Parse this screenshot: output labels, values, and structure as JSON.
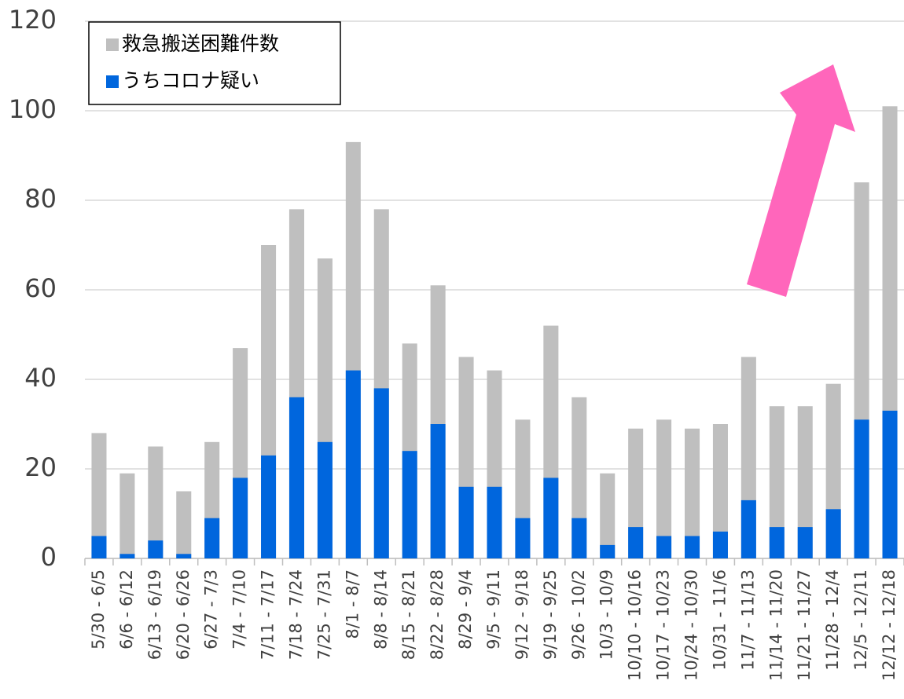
{
  "chart_data": {
    "type": "bar",
    "categories": [
      "5/30 - 6/5",
      "6/6 - 6/12",
      "6/13 - 6/19",
      "6/20 - 6/26",
      "6/27 - 7/3",
      "7/4 - 7/10",
      "7/11 - 7/17",
      "7/18 - 7/24",
      "7/25 - 7/31",
      "8/1 - 8/7",
      "8/8 - 8/14",
      "8/15 - 8/21",
      "8/22 - 8/28",
      "8/29 - 9/4",
      "9/5 - 9/11",
      "9/12 - 9/18",
      "9/19 - 9/25",
      "9/26 - 10/2",
      "10/3 - 10/9",
      "10/10 - 10/16",
      "10/17 - 10/23",
      "10/24 - 10/30",
      "10/31 - 11/6",
      "11/7 - 11/13",
      "11/14 - 11/20",
      "11/21 - 11/27",
      "11/28 - 12/4",
      "12/5 - 12/11",
      "12/12 - 12/18"
    ],
    "series": [
      {
        "name": "救急搬送困難件数",
        "color": "#bfbfbf",
        "values": [
          28,
          19,
          25,
          15,
          26,
          47,
          70,
          78,
          67,
          93,
          78,
          48,
          61,
          45,
          42,
          31,
          52,
          36,
          19,
          29,
          31,
          29,
          30,
          45,
          34,
          34,
          39,
          84,
          101
        ]
      },
      {
        "name": "うちコロナ疑い",
        "color": "#0066dd",
        "values": [
          5,
          1,
          4,
          1,
          9,
          18,
          23,
          36,
          26,
          42,
          38,
          24,
          30,
          16,
          16,
          9,
          18,
          9,
          3,
          7,
          5,
          5,
          6,
          13,
          7,
          7,
          11,
          31,
          33
        ]
      }
    ],
    "ylim": [
      0,
      120
    ],
    "yticks": [
      0,
      20,
      40,
      60,
      80,
      100,
      120
    ],
    "grid": true
  }
}
